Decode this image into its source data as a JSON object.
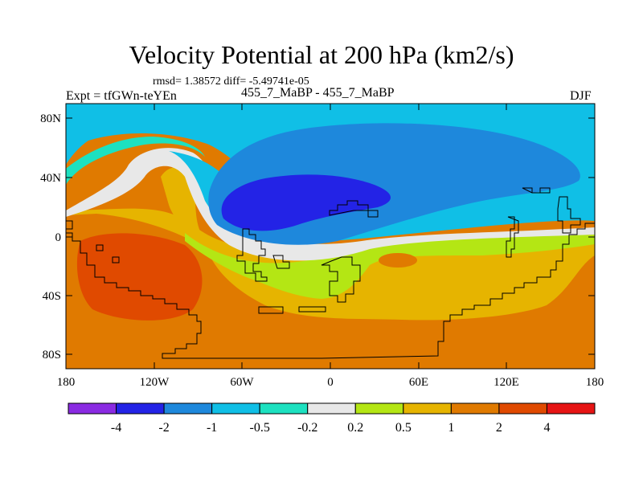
{
  "figure": {
    "title": "Velocity Potential at 200 hPa (km2/s)",
    "stats": "rmsd= 1.38572 diff= -5.49741e-05",
    "expt_label": "Expt = tfGWn-teYEn",
    "runs_label": "455_7_MaBP - 455_7_MaBP",
    "season": "DJF"
  },
  "axes": {
    "lat_ticks": [
      "80N",
      "40N",
      "0",
      "40S",
      "80S"
    ],
    "lon_ticks": [
      "180",
      "120W",
      "60W",
      "0",
      "60E",
      "120E",
      "180"
    ]
  },
  "colorbar": {
    "colors": [
      "#8a2be2",
      "#2323e6",
      "#1e88dc",
      "#10bfe6",
      "#1de1c0",
      "#e8e8e8",
      "#b4e614",
      "#e6b400",
      "#e07a00",
      "#e04a00",
      "#e61414"
    ],
    "labels": [
      "-4",
      "-2",
      "-1",
      "-0.5",
      "-0.2",
      "0.2",
      "0.5",
      "1",
      "2",
      "4"
    ]
  }
}
